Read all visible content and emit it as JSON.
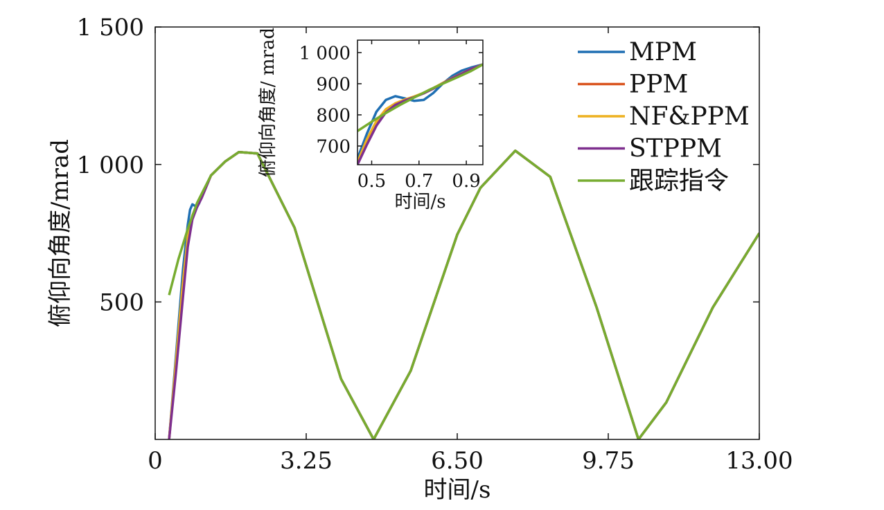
{
  "chart_data": [
    {
      "type": "line",
      "xlabel": "时间/s",
      "ylabel": "俯仰向角度/mrad",
      "xlim": [
        0,
        13
      ],
      "ylim": [
        0,
        1500
      ],
      "x_ticks": [
        0,
        3.25,
        6.5,
        9.75,
        13
      ],
      "x_tick_labels": [
        "0",
        "3.25",
        "6.50",
        "9.75",
        "13.00"
      ],
      "y_ticks": [
        500,
        1000,
        1500
      ],
      "y_tick_labels": [
        "500",
        "1 000",
        "1 500"
      ],
      "grid": false,
      "legend_position": "top-right",
      "series": [
        {
          "name": "MPM",
          "color": "#1f6fb3",
          "x": [
            0.3,
            0.45,
            0.6,
            0.7,
            0.75,
            0.8,
            0.85,
            0.9,
            0.95,
            1.0,
            1.2,
            1.5,
            1.8,
            2.2,
            3.0,
            4.0,
            4.7,
            5.5,
            6.5,
            7.0,
            7.75,
            8.5,
            9.5,
            10.4,
            11.0,
            12.0,
            13.0
          ],
          "y": [
            0,
            310,
            620,
            780,
            835,
            855,
            850,
            845,
            860,
            890,
            960,
            1010,
            1045,
            1040,
            770,
            220,
            0,
            250,
            745,
            915,
            1050,
            955,
            480,
            0,
            135,
            480,
            750
          ]
        },
        {
          "name": "PPM",
          "color": "#d9541e",
          "x": [
            0.3,
            0.45,
            0.6,
            0.7,
            0.8,
            0.9,
            1.0,
            1.2,
            1.5,
            1.8,
            2.2,
            3.0,
            4.0,
            4.7,
            5.5,
            6.5,
            7.0,
            7.75,
            8.5,
            9.5,
            10.4,
            11.0,
            12.0,
            13.0
          ],
          "y": [
            0,
            280,
            560,
            720,
            810,
            850,
            880,
            960,
            1010,
            1045,
            1040,
            770,
            220,
            0,
            250,
            745,
            915,
            1050,
            955,
            480,
            0,
            135,
            480,
            750
          ]
        },
        {
          "name": "NF&PPM",
          "color": "#edb120",
          "x": [
            0.3,
            0.45,
            0.6,
            0.7,
            0.8,
            0.9,
            1.0,
            1.2,
            1.5,
            1.8,
            2.2,
            3.0,
            4.0,
            4.7,
            5.5,
            6.5,
            7.0,
            7.75,
            8.5,
            9.5,
            10.4,
            11.0,
            12.0,
            13.0
          ],
          "y": [
            0,
            290,
            575,
            735,
            815,
            852,
            882,
            960,
            1010,
            1045,
            1040,
            770,
            220,
            0,
            250,
            745,
            915,
            1050,
            955,
            480,
            0,
            135,
            480,
            750
          ]
        },
        {
          "name": "STPPM",
          "color": "#7e2f8e",
          "x": [
            0.3,
            0.45,
            0.6,
            0.7,
            0.8,
            0.9,
            1.0,
            1.2,
            1.5,
            1.8,
            2.2,
            3.0,
            4.0,
            4.7,
            5.5,
            6.5,
            7.0,
            7.75,
            8.5,
            9.5,
            10.4,
            11.0,
            12.0,
            13.0
          ],
          "y": [
            0,
            250,
            520,
            700,
            800,
            845,
            878,
            960,
            1010,
            1045,
            1040,
            770,
            220,
            0,
            250,
            745,
            915,
            1050,
            955,
            480,
            0,
            135,
            480,
            750
          ]
        },
        {
          "name": "跟踪指令",
          "color": "#77ac30",
          "x": [
            0.3,
            0.5,
            0.7,
            0.9,
            1.2,
            1.5,
            1.8,
            2.2,
            3.0,
            4.0,
            4.7,
            5.5,
            6.5,
            7.0,
            7.75,
            8.5,
            9.5,
            10.4,
            11.0,
            12.0,
            13.0
          ],
          "y": [
            525,
            655,
            765,
            860,
            960,
            1010,
            1045,
            1040,
            770,
            220,
            0,
            250,
            745,
            915,
            1050,
            955,
            480,
            0,
            135,
            480,
            750
          ]
        }
      ]
    },
    {
      "type": "line",
      "xlabel": "时间/s",
      "ylabel": "俯仰向角度/ mrad",
      "xlim": [
        0.44,
        0.97
      ],
      "ylim": [
        640,
        1040
      ],
      "x_ticks": [
        0.5,
        0.7,
        0.9
      ],
      "x_tick_labels": [
        "0.5",
        "0.7",
        "0.9"
      ],
      "y_ticks": [
        700,
        800,
        900,
        1000
      ],
      "y_tick_labels": [
        "700",
        "800",
        "900",
        "1 000"
      ],
      "grid": false,
      "series": [
        {
          "name": "MPM",
          "color": "#1f6fb3",
          "x": [
            0.44,
            0.48,
            0.52,
            0.56,
            0.6,
            0.64,
            0.68,
            0.72,
            0.76,
            0.8,
            0.84,
            0.88,
            0.92,
            0.97
          ],
          "y": [
            660,
            740,
            810,
            848,
            860,
            853,
            845,
            848,
            870,
            900,
            925,
            942,
            952,
            962
          ]
        },
        {
          "name": "PPM",
          "color": "#d9541e",
          "x": [
            0.44,
            0.48,
            0.52,
            0.56,
            0.6,
            0.64,
            0.68,
            0.72,
            0.76,
            0.8,
            0.84,
            0.88,
            0.92,
            0.97
          ],
          "y": [
            645,
            718,
            775,
            815,
            835,
            848,
            858,
            870,
            885,
            902,
            918,
            933,
            947,
            962
          ]
        },
        {
          "name": "NF&PPM",
          "color": "#edb120",
          "x": [
            0.44,
            0.48,
            0.52,
            0.56,
            0.6,
            0.64,
            0.68,
            0.72,
            0.76,
            0.8,
            0.84,
            0.88,
            0.92,
            0.97
          ],
          "y": [
            648,
            722,
            780,
            818,
            837,
            849,
            859,
            871,
            886,
            902,
            918,
            933,
            947,
            962
          ]
        },
        {
          "name": "STPPM",
          "color": "#7e2f8e",
          "x": [
            0.44,
            0.48,
            0.52,
            0.56,
            0.6,
            0.64,
            0.68,
            0.72,
            0.76,
            0.8,
            0.84,
            0.88,
            0.92,
            0.97
          ],
          "y": [
            640,
            705,
            765,
            808,
            832,
            846,
            857,
            869,
            884,
            901,
            917,
            932,
            947,
            962
          ]
        },
        {
          "name": "跟踪指令",
          "color": "#77ac30",
          "x": [
            0.44,
            0.5,
            0.56,
            0.62,
            0.68,
            0.74,
            0.8,
            0.86,
            0.92,
            0.97
          ],
          "y": [
            748,
            778,
            806,
            832,
            856,
            879,
            900,
            920,
            941,
            962
          ]
        }
      ]
    }
  ]
}
